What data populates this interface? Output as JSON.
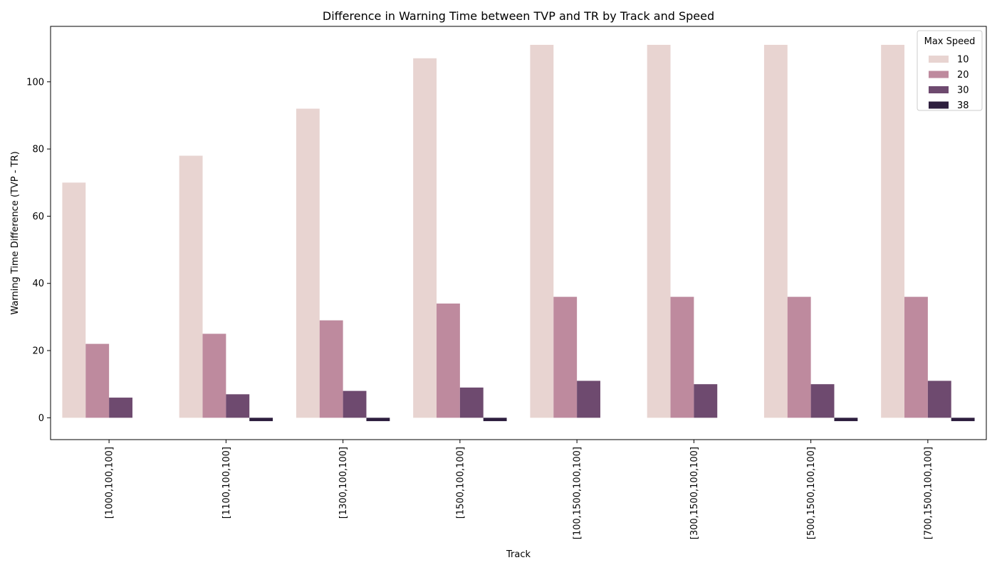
{
  "chart_data": {
    "type": "bar",
    "title": "Difference in Warning Time between TVP and TR by Track and Speed",
    "xlabel": "Track",
    "ylabel": "Warning Time Difference (TVP - TR)",
    "ylim": [
      -6.5,
      116.5
    ],
    "yticks": [
      0,
      20,
      40,
      60,
      80,
      100
    ],
    "grid": false,
    "categories": [
      "[1000,100,100]",
      "[1100,100,100]",
      "[1300,100,100]",
      "[1500,100,100]",
      "[100,1500,100,100]",
      "[300,1500,100,100]",
      "[500,1500,100,100]",
      "[700,1500,100,100]"
    ],
    "legend": {
      "title": "Max Speed",
      "placement": "top-right"
    },
    "series": [
      {
        "name": "10",
        "color": "#e8d4d1",
        "values": [
          70,
          78,
          92,
          107,
          111,
          111,
          111,
          111
        ]
      },
      {
        "name": "20",
        "color": "#be8a9e",
        "values": [
          22,
          25,
          29,
          34,
          36,
          36,
          36,
          36
        ]
      },
      {
        "name": "30",
        "color": "#6e4a6f",
        "values": [
          6,
          7,
          8,
          9,
          11,
          10,
          10,
          11
        ]
      },
      {
        "name": "38",
        "color": "#2d1e3e",
        "values": [
          0,
          -1,
          -1,
          -1,
          0,
          0,
          -1,
          -1
        ]
      }
    ]
  }
}
